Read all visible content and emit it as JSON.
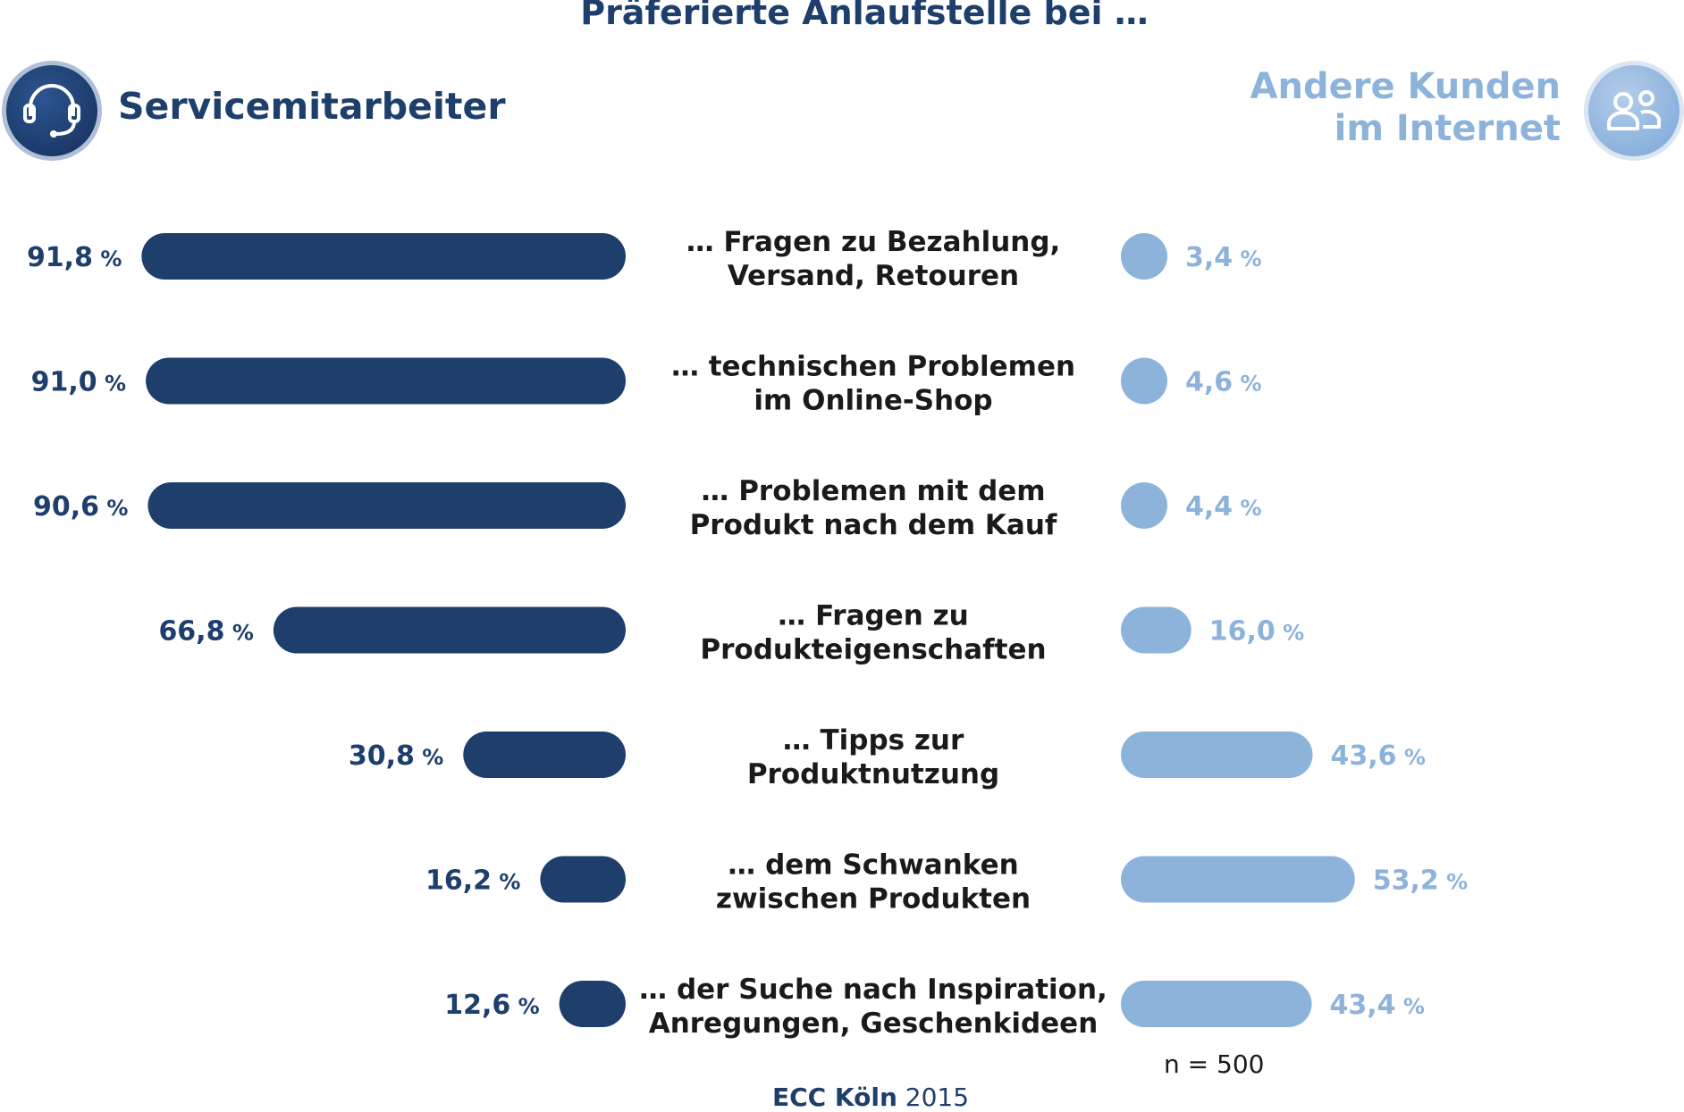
{
  "title": "Präferierte Anlaufstelle bei …",
  "left_header": {
    "label": "Servicemitarbeiter",
    "icon": "headset-icon"
  },
  "right_header": {
    "line1": "Andere Kunden",
    "line2": "im Internet",
    "icon": "users-icon"
  },
  "colors": {
    "dark": "#1e3e6c",
    "light": "#8db3db",
    "text": "#1a1a1a"
  },
  "footer": {
    "n_note": "n = 500",
    "source_org": "ECC Köln",
    "source_year": "2015"
  },
  "chart_data": {
    "type": "bar",
    "orientation": "horizontal-butterfly",
    "unit": "%",
    "categories": [
      [
        "… Fragen zu Bezahlung,",
        "Versand, Retouren"
      ],
      [
        "… technischen Problemen",
        "im Online-Shop"
      ],
      [
        "… Problemen mit dem",
        "Produkt nach dem Kauf"
      ],
      [
        "… Fragen zu",
        "Produkteigenschaften"
      ],
      [
        "… Tipps zur",
        "Produktnutzung"
      ],
      [
        "… dem Schwanken",
        "zwischen Produkten"
      ],
      [
        "… der Suche nach Inspiration,",
        "Anregungen, Geschenkideen"
      ]
    ],
    "series": [
      {
        "name": "Servicemitarbeiter",
        "side": "left",
        "values": [
          91.8,
          91.0,
          90.6,
          66.8,
          30.8,
          16.2,
          12.6
        ],
        "labels": [
          "91,8",
          "91,0",
          "90,6",
          "66,8",
          "30,8",
          "16,2",
          "12,6"
        ]
      },
      {
        "name": "Andere Kunden im Internet",
        "side": "right",
        "values": [
          3.4,
          4.6,
          4.4,
          16.0,
          43.6,
          53.2,
          43.4
        ],
        "labels": [
          "3,4",
          "4,6",
          "4,4",
          "16,0",
          "43,6",
          "53,2",
          "43,4"
        ]
      }
    ]
  }
}
